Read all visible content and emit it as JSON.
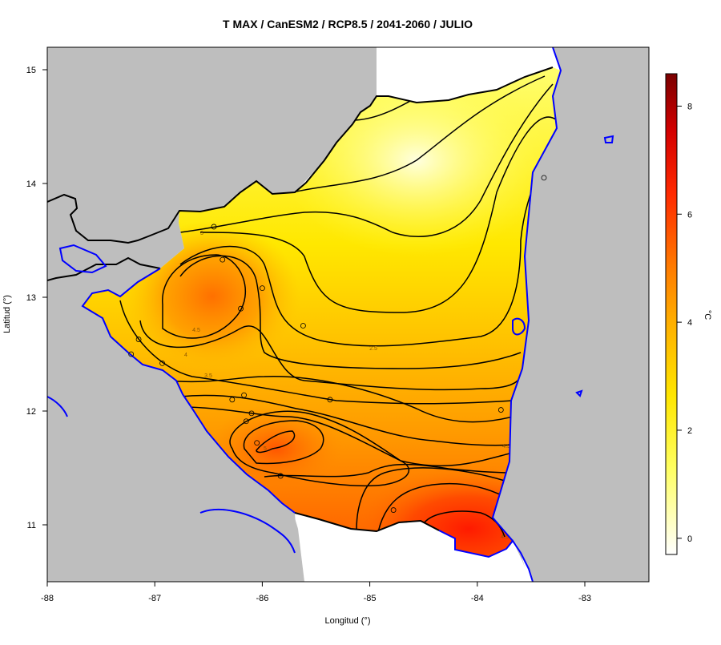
{
  "title": "T MAX / CanESM2 / RCP8.5 / 2041-2060 / JULIO",
  "xlabel": "Longitud (°)",
  "ylabel": "Latitud (°)",
  "x_ticks": [
    "-88",
    "-87",
    "-86",
    "-85",
    "-84",
    "-83"
  ],
  "y_ticks": [
    "11",
    "12",
    "13",
    "14",
    "15"
  ],
  "colorbar": {
    "unit": "°C",
    "ticks": [
      "0",
      "2",
      "4",
      "6",
      "8"
    ],
    "range": [
      -0.3,
      8.6
    ],
    "colors": [
      "#ffffff",
      "#ffff60",
      "#ffe600",
      "#ffb000",
      "#ff7a00",
      "#ff2a00",
      "#d40000",
      "#7a0000"
    ]
  },
  "contour_labels": [
    "3",
    "4.5",
    "4",
    "3.5",
    "2.5",
    "5",
    "4.5",
    "4.5"
  ],
  "colors": {
    "land_background": "#bebebe",
    "coastline": "#0000ff",
    "border": "#000000",
    "contour": "#000000"
  },
  "chart_data": {
    "type": "heatmap",
    "title": "T MAX / CanESM2 / RCP8.5 / 2041-2060 / JULIO",
    "xlabel": "Longitud (°)",
    "ylabel": "Latitud (°)",
    "xlim": [
      -88,
      -82.4
    ],
    "ylim": [
      10.5,
      15.2
    ],
    "value_unit": "°C",
    "contour_levels": [
      2.5,
      3,
      3.5,
      4,
      4.5,
      5
    ],
    "stations": [
      {
        "lon": -86.45,
        "lat": 13.62
      },
      {
        "lon": -86.37,
        "lat": 13.33
      },
      {
        "lon": -86.0,
        "lat": 13.08
      },
      {
        "lon": -86.2,
        "lat": 12.9
      },
      {
        "lon": -85.62,
        "lat": 12.75
      },
      {
        "lon": -87.15,
        "lat": 12.63
      },
      {
        "lon": -87.22,
        "lat": 12.5
      },
      {
        "lon": -86.93,
        "lat": 12.42
      },
      {
        "lon": -86.28,
        "lat": 12.1
      },
      {
        "lon": -86.17,
        "lat": 12.14
      },
      {
        "lon": -85.37,
        "lat": 12.1
      },
      {
        "lon": -86.1,
        "lat": 11.98
      },
      {
        "lon": -86.15,
        "lat": 11.91
      },
      {
        "lon": -86.05,
        "lat": 11.72
      },
      {
        "lon": -85.83,
        "lat": 11.43
      },
      {
        "lon": -84.78,
        "lat": 11.13
      },
      {
        "lon": -83.78,
        "lat": 12.01
      },
      {
        "lon": -83.38,
        "lat": 14.05
      }
    ]
  }
}
